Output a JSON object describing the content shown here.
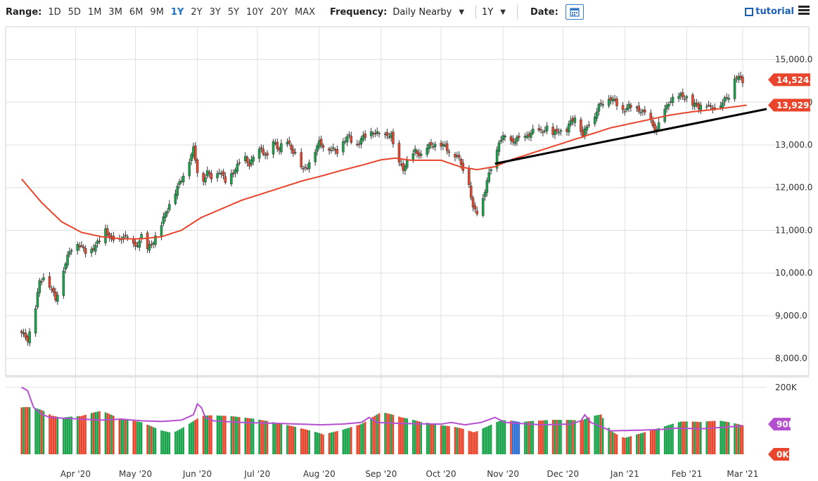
{
  "toolbar": {
    "range_label": "Range:",
    "ranges": [
      "1D",
      "5D",
      "1M",
      "3M",
      "6M",
      "9M",
      "1Y",
      "2Y",
      "3Y",
      "5Y",
      "10Y",
      "20Y",
      "MAX"
    ],
    "active_range": "1Y",
    "frequency_label": "Frequency:",
    "frequency_value": "Daily Nearby",
    "period_value": "1Y",
    "date_label": "Date:",
    "tutorial_label": "tutorial"
  },
  "colors": {
    "up": "#19a34a",
    "down": "#e8452c",
    "ma": "#e8452c",
    "avg_vol": "#b44fd0",
    "trend": "#000000",
    "grid": "#e0e0e0",
    "price_tag": "#e8452c",
    "neutral_bar": "#2a6fd6"
  },
  "chart_data": {
    "type": "candlestick",
    "price_axis": {
      "ylim": [
        7600,
        15700
      ],
      "ticks": [
        "8,000.0",
        "9,000.0",
        "10,000.0",
        "11,000.0",
        "12,000.0",
        "13,000.0",
        "14,000.0",
        "15,000.0"
      ],
      "tick_values": [
        8000,
        9000,
        10000,
        11000,
        12000,
        13000,
        14000,
        15000
      ]
    },
    "volume_axis": {
      "ylim": [
        0,
        210000
      ],
      "ticks": [
        "200K"
      ],
      "tick_values": [
        200000
      ]
    },
    "x_labels": [
      "Apr '20",
      "May '20",
      "Jun '20",
      "Jul '20",
      "Aug '20",
      "Sep '20",
      "Oct '20",
      "Nov '20",
      "Dec '20",
      "Jan '21",
      "Feb '21",
      "Mar '21"
    ],
    "x_label_days": [
      21,
      51,
      82,
      112,
      143,
      174,
      204,
      235,
      265,
      296,
      327,
      355
    ],
    "last_price_label": "14,524.0",
    "last_price": 14524,
    "ma_value_label": "13,929.2",
    "ma_value": 13929.2,
    "avg_volume_label": "90K",
    "avg_volume": 90000,
    "zero_volume_label": "0K",
    "trendline": {
      "from": {
        "day": 237,
        "price": 12560
      },
      "to": {
        "day": 373,
        "price": 13840
      }
    },
    "x_range_days": [
      -8,
      373
    ],
    "price_path": [
      [
        0,
        8600
      ],
      [
        3,
        8450
      ],
      [
        6,
        8900
      ],
      [
        9,
        9800
      ],
      [
        12,
        9950
      ],
      [
        15,
        9600
      ],
      [
        17,
        9400
      ],
      [
        19,
        9650
      ],
      [
        21,
        10100
      ],
      [
        24,
        10500
      ],
      [
        27,
        10750
      ],
      [
        30,
        10600
      ],
      [
        33,
        10450
      ],
      [
        36,
        10600
      ],
      [
        39,
        10750
      ],
      [
        42,
        11000
      ],
      [
        45,
        10800
      ],
      [
        48,
        10650
      ],
      [
        51,
        10900
      ],
      [
        54,
        10750
      ],
      [
        57,
        10600
      ],
      [
        60,
        10850
      ],
      [
        63,
        10550
      ],
      [
        66,
        10750
      ],
      [
        69,
        11000
      ],
      [
        72,
        11400
      ],
      [
        75,
        11700
      ],
      [
        78,
        12000
      ],
      [
        81,
        12300
      ],
      [
        84,
        12650
      ],
      [
        86,
        12900
      ],
      [
        88,
        12400
      ],
      [
        90,
        12100
      ],
      [
        93,
        12350
      ],
      [
        96,
        12200
      ],
      [
        99,
        12400
      ],
      [
        102,
        12150
      ],
      [
        105,
        12300
      ],
      [
        108,
        12500
      ],
      [
        111,
        12750
      ],
      [
        114,
        12550
      ],
      [
        117,
        12750
      ],
      [
        120,
        12900
      ],
      [
        123,
        12700
      ],
      [
        126,
        13050
      ],
      [
        129,
        12900
      ],
      [
        132,
        13150
      ],
      [
        135,
        12900
      ],
      [
        138,
        12750
      ],
      [
        141,
        12400
      ],
      [
        143,
        12500
      ],
      [
        146,
        12800
      ],
      [
        149,
        13050
      ],
      [
        152,
        12950
      ],
      [
        155,
        12900
      ],
      [
        158,
        12850
      ],
      [
        161,
        13100
      ],
      [
        164,
        13200
      ],
      [
        167,
        12900
      ],
      [
        170,
        13150
      ],
      [
        173,
        13200
      ],
      [
        176,
        13300
      ],
      [
        179,
        13250
      ],
      [
        182,
        13200
      ],
      [
        185,
        13250
      ],
      [
        187,
        12700
      ],
      [
        189,
        12550
      ],
      [
        191,
        12450
      ],
      [
        194,
        12650
      ],
      [
        197,
        12850
      ],
      [
        200,
        12750
      ],
      [
        203,
        12950
      ],
      [
        206,
        13000
      ],
      [
        209,
        13050
      ],
      [
        212,
        12950
      ],
      [
        215,
        12800
      ],
      [
        218,
        12750
      ],
      [
        221,
        12450
      ],
      [
        224,
        12100
      ],
      [
        226,
        11500
      ],
      [
        229,
        11400
      ],
      [
        231,
        11750
      ],
      [
        233,
        12150
      ],
      [
        235,
        12450
      ],
      [
        237,
        12600
      ],
      [
        239,
        13100
      ],
      [
        242,
        13200
      ],
      [
        245,
        13050
      ],
      [
        248,
        13150
      ],
      [
        251,
        13100
      ],
      [
        254,
        13250
      ],
      [
        257,
        13350
      ],
      [
        260,
        13300
      ],
      [
        263,
        13400
      ],
      [
        266,
        13250
      ],
      [
        269,
        13350
      ],
      [
        272,
        13250
      ],
      [
        275,
        13550
      ],
      [
        278,
        13700
      ],
      [
        281,
        13200
      ],
      [
        283,
        13450
      ],
      [
        286,
        13600
      ],
      [
        289,
        13900
      ],
      [
        292,
        14050
      ],
      [
        295,
        14100
      ],
      [
        298,
        13950
      ],
      [
        301,
        13800
      ],
      [
        304,
        13900
      ],
      [
        307,
        13850
      ],
      [
        310,
        13800
      ],
      [
        313,
        13700
      ],
      [
        316,
        13450
      ],
      [
        318,
        13350
      ],
      [
        321,
        13700
      ],
      [
        324,
        14000
      ],
      [
        327,
        14100
      ],
      [
        330,
        14150
      ],
      [
        333,
        14100
      ],
      [
        336,
        13950
      ],
      [
        339,
        13900
      ],
      [
        342,
        14000
      ],
      [
        345,
        13850
      ],
      [
        348,
        13900
      ],
      [
        351,
        14000
      ],
      [
        354,
        14150
      ],
      [
        356,
        14550
      ],
      [
        358,
        14600
      ],
      [
        361,
        14500
      ]
    ],
    "ma_path": [
      [
        0,
        12200
      ],
      [
        10,
        11650
      ],
      [
        20,
        11200
      ],
      [
        30,
        10950
      ],
      [
        40,
        10850
      ],
      [
        50,
        10800
      ],
      [
        60,
        10800
      ],
      [
        70,
        10850
      ],
      [
        80,
        11000
      ],
      [
        90,
        11300
      ],
      [
        100,
        11500
      ],
      [
        110,
        11700
      ],
      [
        120,
        11850
      ],
      [
        130,
        12000
      ],
      [
        140,
        12150
      ],
      [
        150,
        12270
      ],
      [
        160,
        12400
      ],
      [
        170,
        12520
      ],
      [
        180,
        12650
      ],
      [
        187,
        12690
      ],
      [
        195,
        12640
      ],
      [
        210,
        12640
      ],
      [
        220,
        12480
      ],
      [
        228,
        12420
      ],
      [
        237,
        12490
      ],
      [
        245,
        12650
      ],
      [
        255,
        12800
      ],
      [
        265,
        12950
      ],
      [
        275,
        13100
      ],
      [
        285,
        13250
      ],
      [
        295,
        13400
      ],
      [
        305,
        13500
      ],
      [
        315,
        13600
      ],
      [
        325,
        13700
      ],
      [
        335,
        13770
      ],
      [
        345,
        13820
      ],
      [
        355,
        13880
      ],
      [
        363,
        13929
      ]
    ],
    "volume_path": [
      [
        0,
        200000
      ],
      [
        5,
        170000
      ],
      [
        10,
        140000
      ],
      [
        15,
        110000
      ],
      [
        20,
        95000
      ],
      [
        30,
        90000
      ],
      [
        40,
        100000
      ],
      [
        50,
        85000
      ],
      [
        60,
        90000
      ],
      [
        70,
        85000
      ],
      [
        80,
        95000
      ],
      [
        90,
        110000
      ],
      [
        100,
        95000
      ],
      [
        110,
        85000
      ],
      [
        120,
        80000
      ],
      [
        130,
        78000
      ],
      [
        140,
        80000
      ],
      [
        150,
        85000
      ],
      [
        160,
        78000
      ],
      [
        170,
        80000
      ],
      [
        180,
        100000
      ],
      [
        190,
        85000
      ],
      [
        200,
        78000
      ],
      [
        210,
        80000
      ],
      [
        220,
        90000
      ],
      [
        230,
        95000
      ],
      [
        240,
        100000
      ],
      [
        250,
        80000
      ],
      [
        260,
        78000
      ],
      [
        270,
        80000
      ],
      [
        280,
        85000
      ],
      [
        290,
        120000
      ],
      [
        295,
        80000
      ],
      [
        300,
        70000
      ],
      [
        310,
        70000
      ],
      [
        320,
        72000
      ],
      [
        330,
        78000
      ],
      [
        340,
        74000
      ],
      [
        350,
        80000
      ],
      [
        361,
        80000
      ]
    ],
    "avg_volume_path": [
      [
        0,
        200000
      ],
      [
        3,
        190000
      ],
      [
        6,
        140000
      ],
      [
        10,
        120000
      ],
      [
        14,
        110000
      ],
      [
        20,
        108000
      ],
      [
        30,
        105000
      ],
      [
        40,
        102000
      ],
      [
        50,
        105000
      ],
      [
        60,
        100000
      ],
      [
        70,
        98000
      ],
      [
        80,
        102000
      ],
      [
        86,
        118000
      ],
      [
        88,
        150000
      ],
      [
        90,
        140000
      ],
      [
        92,
        110000
      ],
      [
        96,
        100000
      ],
      [
        110,
        95000
      ],
      [
        130,
        92000
      ],
      [
        140,
        90000
      ],
      [
        150,
        88000
      ],
      [
        160,
        90000
      ],
      [
        170,
        95000
      ],
      [
        174,
        110000
      ],
      [
        178,
        95000
      ],
      [
        190,
        92000
      ],
      [
        210,
        90000
      ],
      [
        215,
        95000
      ],
      [
        222,
        88000
      ],
      [
        230,
        95000
      ],
      [
        237,
        110000
      ],
      [
        242,
        95000
      ],
      [
        260,
        88000
      ],
      [
        275,
        90000
      ],
      [
        280,
        100000
      ],
      [
        282,
        118000
      ],
      [
        285,
        95000
      ],
      [
        295,
        70000
      ],
      [
        310,
        72000
      ],
      [
        320,
        74000
      ],
      [
        328,
        78000
      ],
      [
        340,
        76000
      ],
      [
        350,
        80000
      ],
      [
        361,
        85000
      ]
    ]
  }
}
